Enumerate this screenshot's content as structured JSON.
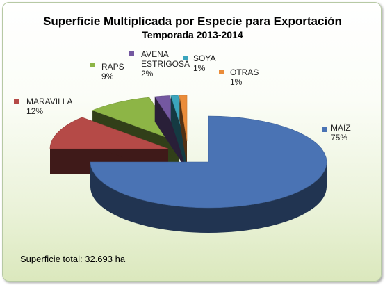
{
  "chart_data": {
    "type": "pie",
    "title": "Superficie Multiplicada por Especie para Exportación",
    "subtitle": "Temporada 2013-2014",
    "slices": [
      {
        "label": "MAÍZ",
        "percent": 75,
        "color": "#4a73b4"
      },
      {
        "label": "MARAVILLA",
        "percent": 12,
        "color": "#b54a47"
      },
      {
        "label": "RAPS",
        "percent": 9,
        "color": "#8db546"
      },
      {
        "label": "AVENA STRIGOSA",
        "percent": 2,
        "color": "#7458a0"
      },
      {
        "label": "SOYA",
        "percent": 1,
        "color": "#3ba5bd"
      },
      {
        "label": "OTRAS",
        "percent": 1,
        "color": "#ea8c3a"
      }
    ],
    "legend_labels": [
      {
        "lines": [
          "MAÍZ"
        ],
        "pct": "75%"
      },
      {
        "lines": [
          "MARAVILLA"
        ],
        "pct": "12%"
      },
      {
        "lines": [
          "RAPS"
        ],
        "pct": "9%"
      },
      {
        "lines": [
          "AVENA",
          "ESTRIGOSA"
        ],
        "pct": "2%"
      },
      {
        "lines": [
          "SOYA"
        ],
        "pct": "1%"
      },
      {
        "lines": [
          "OTRAS"
        ],
        "pct": "1%"
      }
    ]
  },
  "footer": {
    "total_text": "Superficie total: 32.693 ha"
  }
}
